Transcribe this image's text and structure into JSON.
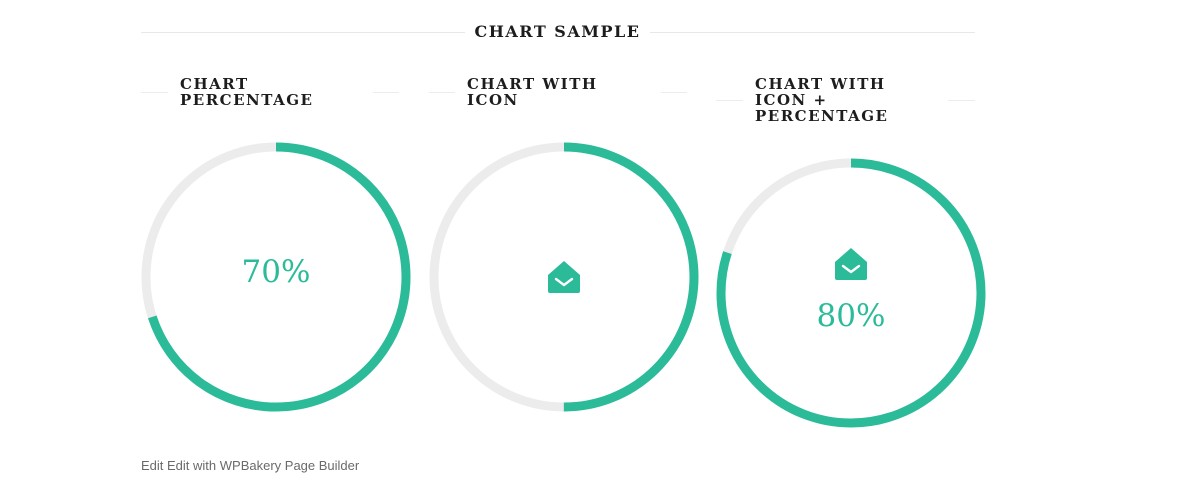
{
  "header": {
    "title": "CHART SAMPLE"
  },
  "colors": {
    "accent": "#2bbb99",
    "track": "#ececec"
  },
  "chart_data": [
    {
      "type": "pie",
      "title_lines": [
        "CHART",
        "PERCENTAGE"
      ],
      "value": 70,
      "label": "70%",
      "icon": ""
    },
    {
      "type": "pie",
      "title_lines": [
        "CHART WITH",
        "ICON"
      ],
      "value": 50,
      "label": "",
      "icon": "envelope-open-icon"
    },
    {
      "type": "pie",
      "title_lines": [
        "CHART WITH",
        "ICON +",
        "PERCENTAGE"
      ],
      "value": 80,
      "label": "80%",
      "icon": "envelope-open-icon"
    }
  ],
  "footer": {
    "text": "Edit Edit with WPBakery Page Builder"
  }
}
